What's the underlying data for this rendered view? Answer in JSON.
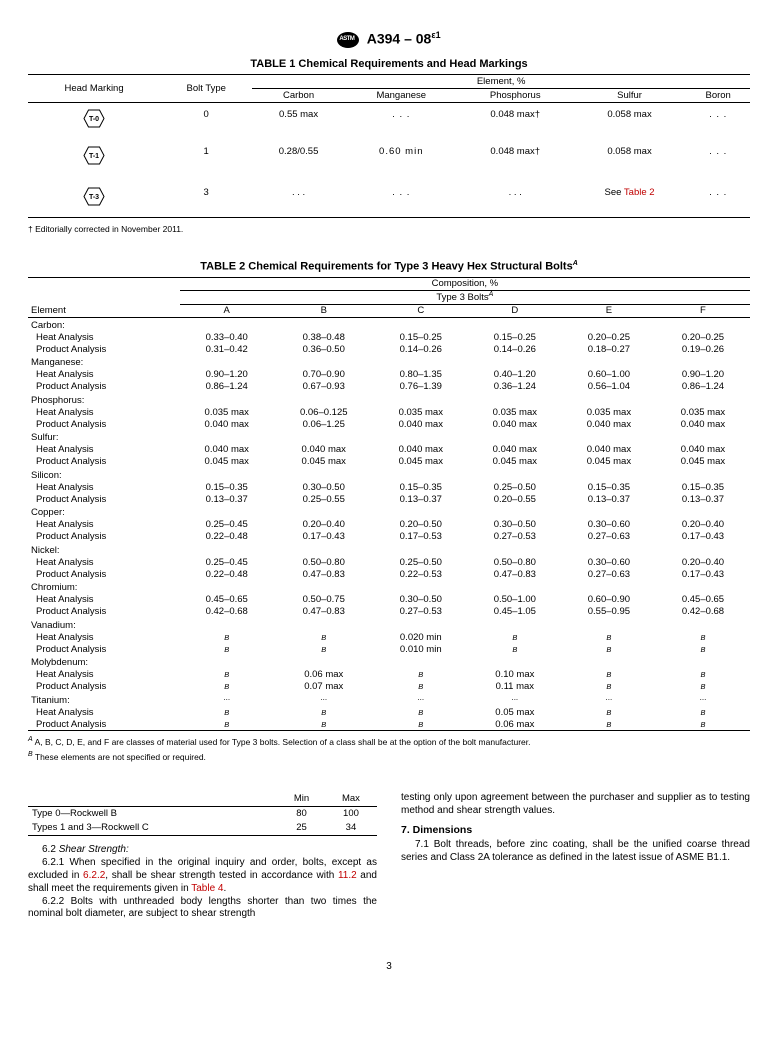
{
  "header": {
    "designation": "A394 – 08",
    "eps": "ε1"
  },
  "table1": {
    "title": "TABLE 1 Chemical Requirements and Head Markings",
    "colgroup_label": "Element, %",
    "headers": {
      "hm": "Head Marking",
      "bt": "Bolt Type",
      "c": "Carbon",
      "mn": "Manganese",
      "p": "Phosphorus",
      "s": "Sulfur",
      "b": "Boron"
    },
    "rows": [
      {
        "mark": "T-0",
        "bt": "0",
        "c": "0.55 max",
        "mn": ". . .",
        "p": "0.048 max†",
        "s": "0.058 max",
        "b": ". . ."
      },
      {
        "mark": "T-1",
        "bt": "1",
        "c": "0.28/0.55",
        "mn": "0.60 min",
        "p": "0.048 max†",
        "s": "0.058 max",
        "b": ". . ."
      },
      {
        "mark": "T-3",
        "bt": "3",
        "c": ". . .",
        "mn": ". . .",
        "p": ". . .",
        "s_pre": "See ",
        "s_link": "Table 2",
        "b": ". . ."
      }
    ],
    "footnote": "† Editorially corrected in November 2011."
  },
  "table2": {
    "title_pre": "TABLE 2 Chemical Requirements for Type 3 Heavy Hex Structural Bolts",
    "comp": "Composition, %",
    "type3": "Type 3 Bolts",
    "element": "Element",
    "cols": [
      "A",
      "B",
      "C",
      "D",
      "E",
      "F"
    ],
    "groups": [
      {
        "name": "Carbon:",
        "rows": [
          {
            "l": "Heat Analysis",
            "v": [
              "0.33–0.40",
              "0.38–0.48",
              "0.15–0.25",
              "0.15–0.25",
              "0.20–0.25",
              "0.20–0.25"
            ]
          },
          {
            "l": "Product Analysis",
            "v": [
              "0.31–0.42",
              "0.36–0.50",
              "0.14–0.26",
              "0.14–0.26",
              "0.18–0.27",
              "0.19–0.26"
            ]
          }
        ]
      },
      {
        "name": "Manganese:",
        "rows": [
          {
            "l": "Heat Analysis",
            "v": [
              "0.90–1.20",
              "0.70–0.90",
              "0.80–1.35",
              "0.40–1.20",
              "0.60–1.00",
              "0.90–1.20"
            ]
          },
          {
            "l": "Product Analysis",
            "v": [
              "0.86–1.24",
              "0.67–0.93",
              "0.76–1.39",
              "0.36–1.24",
              "0.56–1.04",
              "0.86–1.24"
            ]
          }
        ]
      },
      {
        "name": "Phosphorus:",
        "rows": [
          {
            "l": "Heat Analysis",
            "v": [
              "0.035 max",
              "0.06–0.125",
              "0.035 max",
              "0.035 max",
              "0.035 max",
              "0.035 max"
            ]
          },
          {
            "l": "Product Analysis",
            "v": [
              "0.040 max",
              "0.06–1.25",
              "0.040 max",
              "0.040 max",
              "0.040 max",
              "0.040 max"
            ]
          }
        ]
      },
      {
        "name": "Sulfur:",
        "rows": [
          {
            "l": "Heat Analysis",
            "v": [
              "0.040 max",
              "0.040 max",
              "0.040 max",
              "0.040 max",
              "0.040 max",
              "0.040 max"
            ]
          },
          {
            "l": "Product Analysis",
            "v": [
              "0.045 max",
              "0.045 max",
              "0.045 max",
              "0.045 max",
              "0.045 max",
              "0.045 max"
            ]
          }
        ]
      },
      {
        "name": "Silicon:",
        "rows": [
          {
            "l": "Heat Analysis",
            "v": [
              "0.15–0.35",
              "0.30–0.50",
              "0.15–0.35",
              "0.25–0.50",
              "0.15–0.35",
              "0.15–0.35"
            ]
          },
          {
            "l": "Product Analysis",
            "v": [
              "0.13–0.37",
              "0.25–0.55",
              "0.13–0.37",
              "0.20–0.55",
              "0.13–0.37",
              "0.13–0.37"
            ]
          }
        ]
      },
      {
        "name": "Copper:",
        "rows": [
          {
            "l": "Heat Analysis",
            "v": [
              "0.25–0.45",
              "0.20–0.40",
              "0.20–0.50",
              "0.30–0.50",
              "0.30–0.60",
              "0.20–0.40"
            ]
          },
          {
            "l": "Product Analysis",
            "v": [
              "0.22–0.48",
              "0.17–0.43",
              "0.17–0.53",
              "0.27–0.53",
              "0.27–0.63",
              "0.17–0.43"
            ]
          }
        ]
      },
      {
        "name": "Nickel:",
        "rows": [
          {
            "l": "Heat Analysis",
            "v": [
              "0.25–0.45",
              "0.50–0.80",
              "0.25–0.50",
              "0.50–0.80",
              "0.30–0.60",
              "0.20–0.40"
            ]
          },
          {
            "l": "Product Analysis",
            "v": [
              "0.22–0.48",
              "0.47–0.83",
              "0.22–0.53",
              "0.47–0.83",
              "0.27–0.63",
              "0.17–0.43"
            ]
          }
        ]
      },
      {
        "name": "Chromium:",
        "rows": [
          {
            "l": "Heat Analysis",
            "v": [
              "0.45–0.65",
              "0.50–0.75",
              "0.30–0.50",
              "0.50–1.00",
              "0.60–0.90",
              "0.45–0.65"
            ]
          },
          {
            "l": "Product Analysis",
            "v": [
              "0.42–0.68",
              "0.47–0.83",
              "0.27–0.53",
              "0.45–1.05",
              "0.55–0.95",
              "0.42–0.68"
            ]
          }
        ]
      },
      {
        "name": "Vanadium:",
        "rows": [
          {
            "l": "Heat Analysis",
            "v": [
              "B",
              "B",
              "0.020 min",
              "B",
              "B",
              "B"
            ],
            "b": [
              1,
              1,
              0,
              1,
              1,
              1
            ]
          },
          {
            "l": "Product Analysis",
            "v": [
              "B",
              "B",
              "0.010 min",
              "B",
              "B",
              "B"
            ],
            "b": [
              1,
              1,
              0,
              1,
              1,
              1
            ]
          }
        ]
      },
      {
        "name": "Molybdenum:",
        "rows": [
          {
            "l": "Heat Analysis",
            "v": [
              "B",
              "0.06 max",
              "B",
              "0.10 max",
              "B",
              "B"
            ],
            "b": [
              1,
              0,
              1,
              0,
              1,
              1
            ]
          },
          {
            "l": "Product Analysis",
            "v": [
              "B",
              "0.07 max",
              "B",
              "0.11 max",
              "B",
              "B"
            ],
            "b": [
              1,
              0,
              1,
              0,
              1,
              1
            ]
          }
        ]
      },
      {
        "name": "Titanium:",
        "dots": true,
        "rows": [
          {
            "l": "Heat Analysis",
            "v": [
              "B",
              "B",
              "B",
              "0.05 max",
              "B",
              "B"
            ],
            "b": [
              1,
              1,
              1,
              0,
              1,
              1
            ]
          },
          {
            "l": "Product Analysis",
            "v": [
              "B",
              "B",
              "B",
              "0.06 max",
              "B",
              "B"
            ],
            "b": [
              1,
              1,
              1,
              0,
              1,
              1
            ]
          }
        ]
      }
    ],
    "fnA": " A, B, C, D, E, and F are classes of material used for Type 3 bolts. Selection of a class shall be at the option of the bolt manufacturer.",
    "fnB": " These elements are not specified or required."
  },
  "hardness": {
    "min": "Min",
    "max": "Max",
    "rows": [
      {
        "l": "Type 0—Rockwell B",
        "min": "80",
        "max": "100"
      },
      {
        "l": "Types 1 and 3—Rockwell C",
        "min": "25",
        "max": "34"
      }
    ]
  },
  "body": {
    "s62": "6.2 ",
    "s62t": "Shear Strength:",
    "p621": "6.2.1 When specified in the original inquiry and order, bolts, except as excluded in ",
    "l622": "6.2.2",
    "p621b": ", shall be shear strength tested in accordance with ",
    "l112": "11.2",
    "p621c": " and shall meet the requirements given in ",
    "lT4": "Table 4",
    "p621d": ".",
    "p622": "6.2.2 Bolts with unthreaded body lengths shorter than two times the nominal bolt diameter, are subject to shear strength",
    "pR1": "testing only upon agreement between the purchaser and supplier as to testing method and shear strength values.",
    "s7": "7. Dimensions",
    "p71": "7.1 Bolt threads, before zinc coating, shall be the unified coarse thread series and Class 2A tolerance as defined in the latest issue of ASME B1.1."
  },
  "page": "3"
}
